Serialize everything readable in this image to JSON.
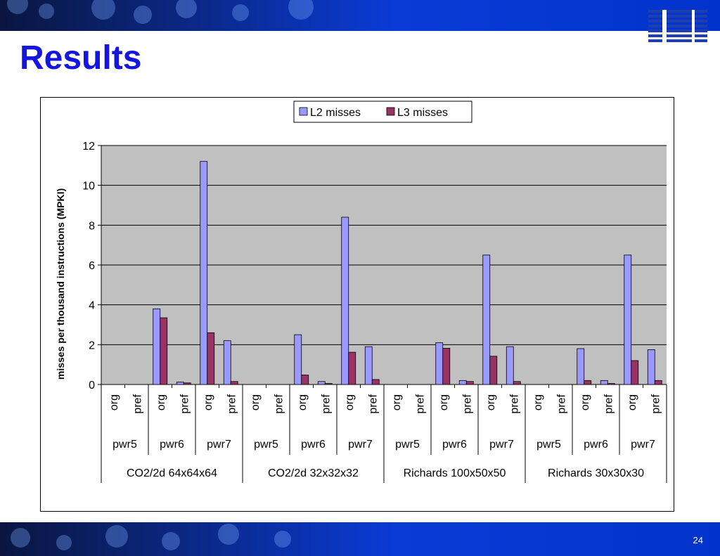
{
  "slide": {
    "title": "Results",
    "logo_text": "IBM",
    "page_number": "24",
    "band_color": "#0033cc",
    "title_color": "#1515e0"
  },
  "chart_data": {
    "type": "bar",
    "title": "",
    "xlabel": "",
    "ylabel": "misses per thousand instructions (MPKI)",
    "ylim": [
      0,
      12
    ],
    "yticks": [
      0,
      2,
      4,
      6,
      8,
      10,
      12
    ],
    "grid": true,
    "legend_position": "top-center",
    "categories": [
      "org",
      "pref",
      "org",
      "pref",
      "org",
      "pref",
      "org",
      "pref",
      "org",
      "pref",
      "org",
      "pref",
      "org",
      "pref",
      "org",
      "pref",
      "org",
      "pref",
      "org",
      "pref",
      "org",
      "pref",
      "org",
      "pref"
    ],
    "machines": [
      "pwr5",
      "pwr6",
      "pwr7",
      "pwr5",
      "pwr6",
      "pwr7",
      "pwr5",
      "pwr6",
      "pwr7",
      "pwr5",
      "pwr6",
      "pwr7"
    ],
    "problems": [
      "CO2/2d 64x64x64",
      "CO2/2d 32x32x32",
      "Richards 100x50x50",
      "Richards 30x30x30"
    ],
    "series": [
      {
        "name": "L2 misses",
        "color": "#9999ff",
        "values": [
          0,
          0,
          3.8,
          0.12,
          11.2,
          2.2,
          0,
          0,
          2.5,
          0.15,
          8.4,
          1.9,
          0,
          0,
          2.1,
          0.2,
          6.5,
          1.9,
          0,
          0,
          1.8,
          0.2,
          6.5,
          1.75
        ]
      },
      {
        "name": "L3 misses",
        "color": "#993366",
        "values": [
          0,
          0,
          3.35,
          0.08,
          2.6,
          0.15,
          0,
          0,
          0.48,
          0.05,
          1.62,
          0.25,
          0,
          0,
          1.82,
          0.15,
          1.42,
          0.15,
          0,
          0,
          0.2,
          0.05,
          1.2,
          0.2
        ]
      }
    ],
    "plot_background": "#c0c0c0"
  }
}
